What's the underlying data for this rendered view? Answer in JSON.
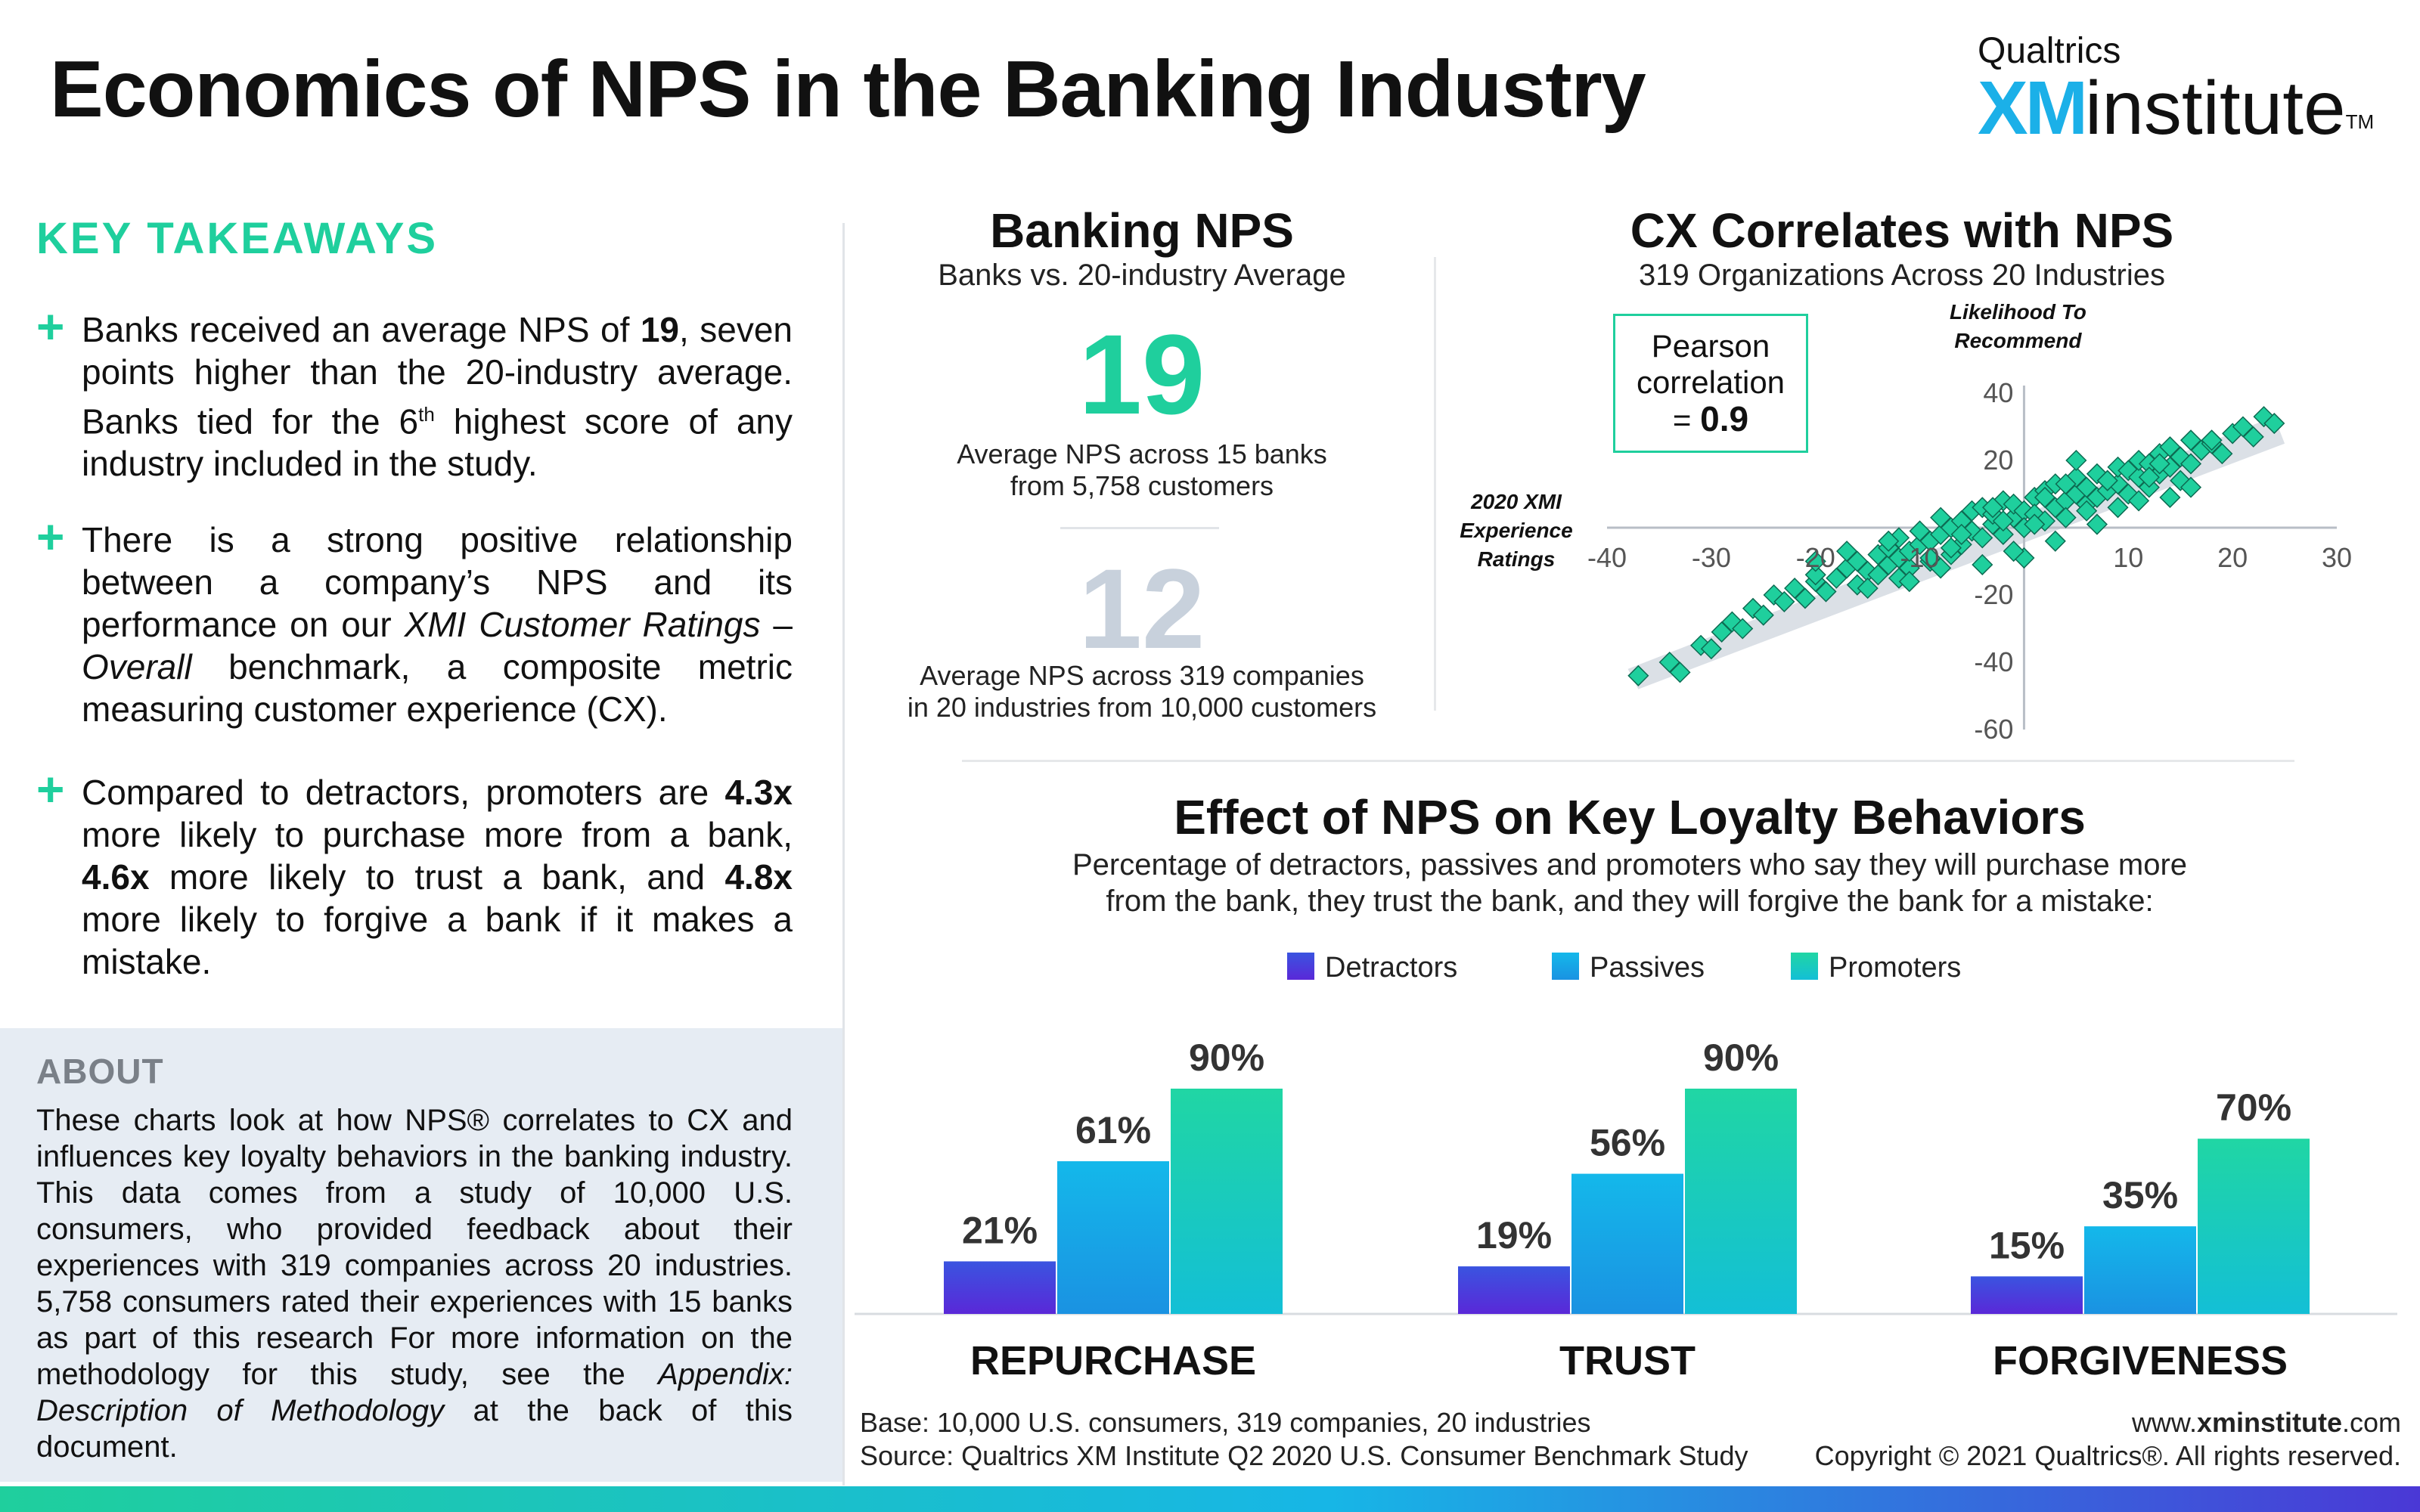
{
  "header": {
    "title": "Economics of NPS in the Banking Industry",
    "brand_top": "Qualtrics",
    "brand_xm": "XM",
    "brand_institute": "institute",
    "brand_tm": "TM"
  },
  "takeaways": {
    "title": "KEY TAKEAWAYS",
    "plus": "+",
    "item1": {
      "a": "Banks received an average NPS of ",
      "b": "19",
      "c": ", seven points higher than the 20-industry average. Banks tied for the 6",
      "d": "th",
      "e": " highest score of any industry included in the study."
    },
    "item2": {
      "a": "There is a strong positive relationship between a company’s NPS and its performance on our ",
      "b": "XMI Customer Ratings",
      "c": " – ",
      "d": "Overall",
      "e": " benchmark, a composite metric measuring customer experience (CX)."
    },
    "item3": {
      "a": "Compared to detractors, promoters are ",
      "b": "4.3x",
      "c": " more likely to purchase more from a bank, ",
      "d": "4.6x",
      "e": " more likely to trust a bank, and ",
      "f": "4.8x",
      "g": " more likely to forgive a bank if it makes a mistake."
    }
  },
  "about": {
    "title": "ABOUT",
    "a": "These charts look at how NPS® correlates to CX and influences key loyalty behaviors in the banking industry. This data comes from a study of 10,000 U.S. consumers, who provided feedback about their experiences with 319 companies across 20 industries. 5,758 consumers rated their experiences with 15 banks as part of this research For more information on the methodology for this study, see the ",
    "b": "Appendix: Description of Methodology",
    "c": " at the back of this document."
  },
  "banking_nps": {
    "title": "Banking NPS",
    "subtitle": "Banks vs. 20-industry Average",
    "banks_value": "19",
    "banks_caption_1": "Average NPS across 15 banks",
    "banks_caption_2": "from 5,758 customers",
    "industry_value": "12",
    "industry_caption_1": "Average NPS across 319 companies",
    "industry_caption_2": "in 20 industries from 10,000 customers"
  },
  "cx": {
    "title": "CX Correlates with NPS",
    "subtitle": "319 Organizations Across 20 Industries",
    "pearson_1": "Pearson",
    "pearson_2": "correlation",
    "pearson_3": "= ",
    "pearson_value": "0.9"
  },
  "effect": {
    "title": "Effect of NPS on Key Loyalty Behaviors",
    "subtitle_1": "Percentage of detractors, passives and promoters who say they will purchase more",
    "subtitle_2": "from the bank, they trust the bank, and they will forgive the bank for a mistake:"
  },
  "footer": {
    "base": "Base: 10,000 U.S. consumers, 319 companies, 20 industries",
    "source": "Source: Qualtrics XM Institute Q2 2020 U.S. Consumer Benchmark Study",
    "url_pre": "www.",
    "url_bold": "xminstitute",
    "url_post": ".com",
    "copyright": "Copyright © 2021 Qualtrics®. All rights reserved."
  },
  "chart_data": [
    {
      "type": "scatter",
      "xlabel": [
        "2020 XMI",
        "Experience",
        "Ratings"
      ],
      "ylabel": [
        "Likelihood To",
        "Recommend"
      ],
      "xlim": [
        -40,
        30
      ],
      "ylim": [
        -60,
        40
      ],
      "x_ticks": [
        -40,
        -30,
        -20,
        -10,
        10,
        20,
        30
      ],
      "y_ticks": [
        -60,
        -40,
        -20,
        20,
        40
      ],
      "color": "#1fcf9d",
      "x": [
        -37,
        -34,
        -33,
        -31,
        -30,
        -29,
        -28,
        -26,
        -25,
        -24,
        -23,
        -22,
        -21,
        -20,
        -20,
        -19,
        -18,
        -17,
        -16,
        -16,
        -15,
        -14,
        -14,
        -13,
        -13,
        -12,
        -12,
        -11,
        -11,
        -10,
        -10,
        -9,
        -9,
        -8,
        -8,
        -7,
        -7,
        -6,
        -6,
        -5,
        -5,
        -4,
        -4,
        -3,
        -3,
        -2,
        -2,
        -1,
        -1,
        0,
        0,
        1,
        1,
        2,
        2,
        3,
        3,
        4,
        4,
        5,
        5,
        6,
        6,
        7,
        7,
        8,
        8,
        9,
        9,
        10,
        10,
        11,
        11,
        12,
        12,
        13,
        13,
        14,
        14,
        15,
        15,
        16,
        16,
        17,
        18,
        19,
        20,
        21,
        22,
        23,
        24,
        -15,
        -12,
        -9,
        -7,
        -4,
        -2,
        1,
        3,
        6,
        8,
        11,
        13,
        -20,
        -17,
        -11,
        -6,
        0,
        4,
        9,
        14,
        18,
        -27,
        -13,
        -8,
        -3,
        2,
        7,
        12,
        16,
        5,
        -1
      ],
      "y": [
        -44,
        -40,
        -43,
        -35,
        -36,
        -31,
        -28,
        -24,
        -26,
        -20,
        -22,
        -18,
        -21,
        -16,
        -14,
        -19,
        -15,
        -12,
        -17,
        -10,
        -13,
        -8,
        -14,
        -11,
        -6,
        -9,
        -3,
        -12,
        -7,
        -5,
        -1,
        -10,
        -4,
        -2,
        3,
        -8,
        0,
        -5,
        2,
        -1,
        5,
        -3,
        6,
        1,
        4,
        -2,
        8,
        3,
        7,
        5,
        0,
        9,
        4,
        2,
        11,
        6,
        13,
        8,
        3,
        10,
        15,
        7,
        12,
        9,
        16,
        11,
        14,
        13,
        18,
        10,
        17,
        15,
        20,
        12,
        19,
        22,
        16,
        18,
        24,
        14,
        21,
        26,
        19,
        23,
        25,
        22,
        28,
        30,
        27,
        33,
        31,
        -18,
        -15,
        -9,
        -6,
        -11,
        2,
        1,
        -4,
        5,
        14,
        8,
        19,
        -10,
        -7,
        -16,
        -2,
        -9,
        13,
        6,
        9,
        26,
        -30,
        -4,
        -12,
        6,
        9,
        1,
        15,
        12,
        20,
        -7
      ],
      "trend_band": true
    },
    {
      "type": "bar",
      "categories": [
        "REPURCHASE",
        "TRUST",
        "FORGIVENESS"
      ],
      "series": [
        {
          "name": "Detractors",
          "values": [
            21,
            19,
            15
          ],
          "labels": [
            "21%",
            "19%",
            "15%"
          ],
          "color_top": "#3a54e0",
          "color_bottom": "#5a28d8"
        },
        {
          "name": "Passives",
          "values": [
            61,
            56,
            35
          ],
          "labels": [
            "61%",
            "56%",
            "35%"
          ],
          "color_top": "#14b8ea",
          "color_bottom": "#1a92e2"
        },
        {
          "name": "Promoters",
          "values": [
            90,
            90,
            70
          ],
          "labels": [
            "90%",
            "90%",
            "70%"
          ],
          "color_top": "#20d6a4",
          "color_bottom": "#13bfd6"
        }
      ],
      "ylim": [
        0,
        100
      ],
      "legend": "top"
    }
  ]
}
